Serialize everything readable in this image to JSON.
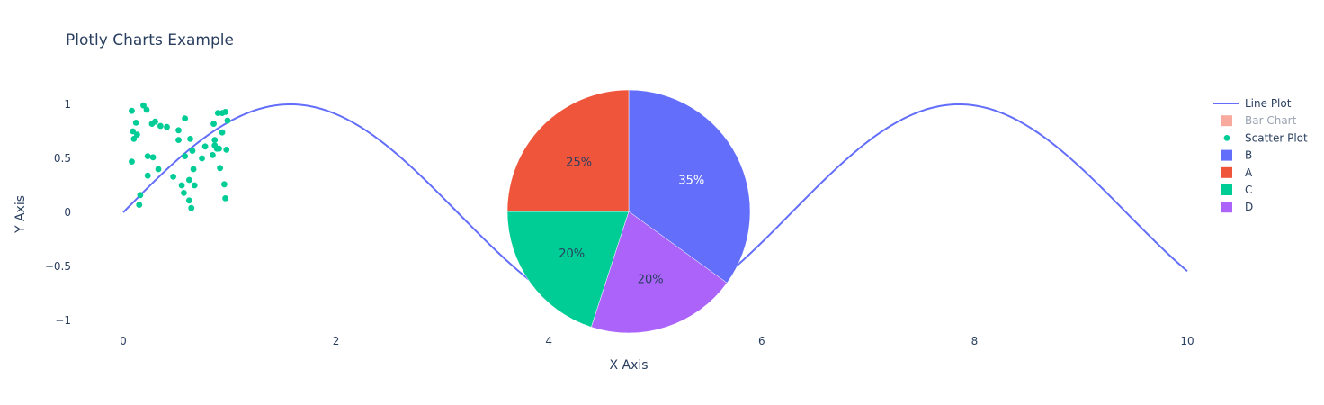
{
  "chart_data": {
    "title": "Plotly Charts Example",
    "xlabel": "X Axis",
    "ylabel": "Y Axis",
    "xlim": [
      -0.2,
      10.3
    ],
    "ylim": [
      -1.1,
      1.2
    ],
    "x_ticks": [
      0,
      2,
      4,
      6,
      8,
      10
    ],
    "x_tick_labels": [
      "0",
      "2",
      "4",
      "6",
      "8",
      "10"
    ],
    "y_ticks": [
      -1,
      -0.5,
      0,
      0.5,
      1
    ],
    "y_tick_labels": [
      "−1",
      "−0.5",
      "0",
      "0.5",
      "1"
    ],
    "grid": false,
    "legend_placement": "top-right",
    "series": [
      {
        "name": "Line Plot",
        "type": "line",
        "function": "sin(x)",
        "x_range": [
          0,
          10
        ],
        "color": "#636efa"
      },
      {
        "name": "Bar Chart",
        "type": "bar",
        "color": "#EF553B",
        "legend_state": "hidden"
      },
      {
        "name": "Scatter Plot",
        "type": "scatter",
        "color": "#00cc96",
        "points": [
          [
            0.08,
            0.94
          ],
          [
            0.19,
            0.99
          ],
          [
            0.22,
            0.95
          ],
          [
            0.12,
            0.83
          ],
          [
            0.09,
            0.75
          ],
          [
            0.13,
            0.72
          ],
          [
            0.1,
            0.68
          ],
          [
            0.27,
            0.82
          ],
          [
            0.3,
            0.84
          ],
          [
            0.35,
            0.8
          ],
          [
            0.41,
            0.79
          ],
          [
            0.58,
            0.87
          ],
          [
            0.52,
            0.76
          ],
          [
            0.52,
            0.67
          ],
          [
            0.63,
            0.68
          ],
          [
            0.85,
            0.82
          ],
          [
            0.89,
            0.92
          ],
          [
            0.93,
            0.92
          ],
          [
            0.96,
            0.93
          ],
          [
            0.98,
            0.85
          ],
          [
            0.93,
            0.74
          ],
          [
            0.86,
            0.67
          ],
          [
            0.86,
            0.62
          ],
          [
            0.88,
            0.59
          ],
          [
            0.9,
            0.59
          ],
          [
            0.77,
            0.61
          ],
          [
            0.84,
            0.53
          ],
          [
            0.74,
            0.5
          ],
          [
            0.97,
            0.58
          ],
          [
            0.65,
            0.57
          ],
          [
            0.58,
            0.52
          ],
          [
            0.08,
            0.47
          ],
          [
            0.23,
            0.52
          ],
          [
            0.28,
            0.51
          ],
          [
            0.33,
            0.4
          ],
          [
            0.23,
            0.34
          ],
          [
            0.47,
            0.33
          ],
          [
            0.66,
            0.4
          ],
          [
            0.91,
            0.41
          ],
          [
            0.55,
            0.25
          ],
          [
            0.67,
            0.25
          ],
          [
            0.95,
            0.26
          ],
          [
            0.57,
            0.18
          ],
          [
            0.62,
            0.3
          ],
          [
            0.16,
            0.16
          ],
          [
            0.96,
            0.13
          ],
          [
            0.62,
            0.11
          ],
          [
            0.15,
            0.07
          ],
          [
            0.64,
            0.04
          ]
        ]
      }
    ],
    "pie": {
      "type": "pie",
      "slices": [
        {
          "label": "B",
          "percent": 35,
          "text": "35%",
          "color": "#636efa"
        },
        {
          "label": "D",
          "percent": 20,
          "text": "20%",
          "color": "#ab63fa"
        },
        {
          "label": "C",
          "percent": 20,
          "text": "20%",
          "color": "#00cc96"
        },
        {
          "label": "A",
          "percent": 25,
          "text": "25%",
          "color": "#EF553B"
        }
      ]
    },
    "legend": [
      {
        "label": "Line Plot",
        "symbol": "line",
        "color": "#636efa"
      },
      {
        "label": "Bar Chart",
        "symbol": "square",
        "color": "#EF553B",
        "muted": true
      },
      {
        "label": "Scatter Plot",
        "symbol": "dot",
        "color": "#00cc96"
      },
      {
        "label": "B",
        "symbol": "square",
        "color": "#636efa"
      },
      {
        "label": "A",
        "symbol": "square",
        "color": "#EF553B"
      },
      {
        "label": "C",
        "symbol": "square",
        "color": "#00cc96"
      },
      {
        "label": "D",
        "symbol": "square",
        "color": "#ab63fa"
      }
    ]
  }
}
